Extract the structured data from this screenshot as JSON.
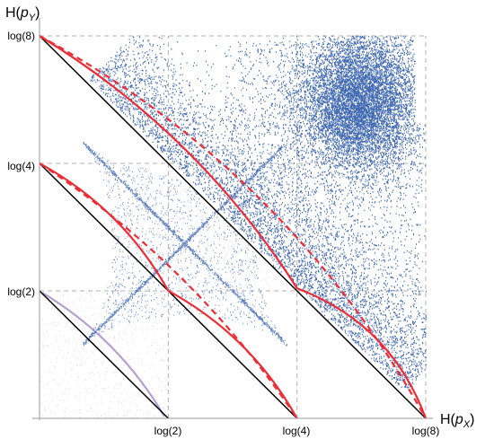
{
  "chart_data": {
    "type": "scatter",
    "xlabel": {
      "main": "H(",
      "var": "p",
      "sub": "X",
      "close": ")"
    },
    "ylabel": {
      "main": "H(",
      "var": "p",
      "sub": "Y",
      "close": ")"
    },
    "x_ticks": [
      {
        "value": 0.693,
        "label": "log(2)"
      },
      {
        "value": 1.386,
        "label": "log(4)"
      },
      {
        "value": 2.079,
        "label": "log(8)"
      }
    ],
    "y_ticks": [
      {
        "value": 0.693,
        "label": "log(2)"
      },
      {
        "value": 1.386,
        "label": "log(4)"
      },
      {
        "value": 2.079,
        "label": "log(8)"
      }
    ],
    "xlim": [
      0,
      2.079
    ],
    "ylim": [
      0,
      2.079
    ],
    "grid": "dashed at log(2), log(4), log(8)",
    "colors": {
      "scatter_main": "#1f4fa5",
      "scatter_mid": "#4a72c4",
      "scatter_faint": "#c8c8d4",
      "boundary": "#ee2c35",
      "diagonal": "#000000",
      "arc": "#b4a0d0",
      "grid": "#b0b0b0"
    },
    "diagonals": [
      {
        "x_intercept": 0.693
      },
      {
        "x_intercept": 1.386
      },
      {
        "x_intercept": 2.079
      }
    ]
  }
}
